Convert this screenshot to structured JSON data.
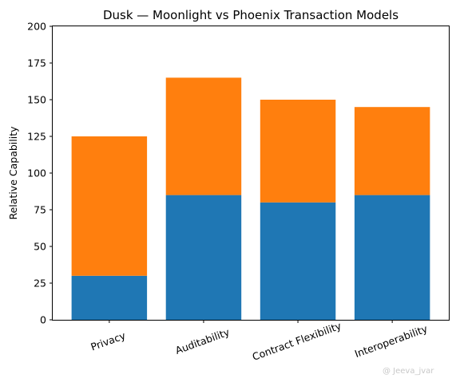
{
  "chart_data": {
    "type": "bar",
    "stacked": true,
    "title": "Dusk — Moonlight vs Phoenix Transaction Models",
    "xlabel": "",
    "ylabel": "Relative Capability",
    "categories": [
      "Privacy",
      "Auditability",
      "Contract Flexibility",
      "Interoperability"
    ],
    "series": [
      {
        "values": [
          30,
          85,
          80,
          85
        ],
        "color": "#1f77b4"
      },
      {
        "values": [
          95,
          80,
          70,
          60
        ],
        "color": "#ff7f0e"
      }
    ],
    "ylim": [
      0,
      200
    ],
    "yticks": [
      0,
      25,
      50,
      75,
      100,
      125,
      150,
      175,
      200
    ],
    "grid": false,
    "legend": "none",
    "x_tick_rotation_deg": 20
  },
  "watermark": {
    "text": "@ Jeeva_jvar"
  }
}
